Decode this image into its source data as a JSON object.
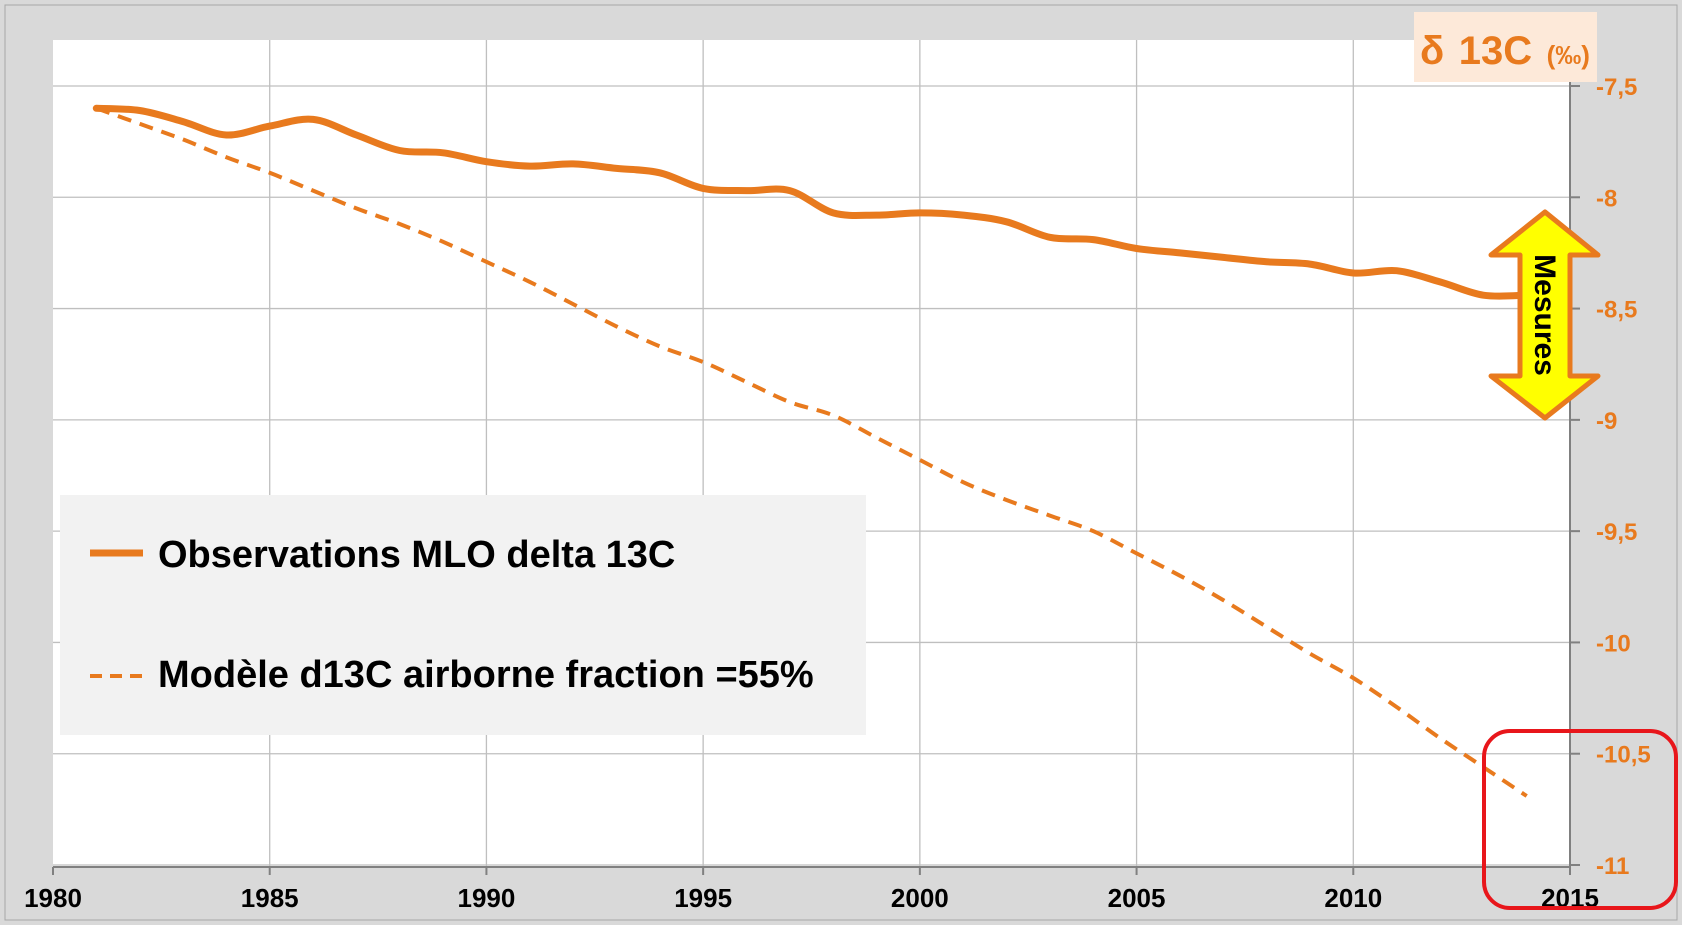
{
  "chart_data": {
    "type": "line",
    "title": "",
    "y_axis_title": "δ 13C (‰)",
    "y_axis_symbol": "δ",
    "y_axis_label_main": "13C",
    "y_axis_label_unit": "(‰)",
    "y_axis_position": "right",
    "xlim": [
      1980,
      2015
    ],
    "ylim": [
      -11,
      -7.5
    ],
    "x_ticks": [
      "1980",
      "1985",
      "1990",
      "1995",
      "2000",
      "2005",
      "2010",
      "2015"
    ],
    "x_tick_values": [
      1980,
      1985,
      1990,
      1995,
      2000,
      2005,
      2010,
      2015
    ],
    "y_ticks": [
      "-7,5",
      "-8",
      "-8,5",
      "-9",
      "-9,5",
      "-10",
      "-10,5",
      "-11"
    ],
    "y_tick_values": [
      -7.5,
      -8,
      -8.5,
      -9,
      -9.5,
      -10,
      -10.5,
      -11
    ],
    "grid": true,
    "legend_position": "left",
    "series": [
      {
        "name": "Observations MLO delta 13C",
        "style": "solid",
        "color": "#e87a1e",
        "x": [
          1981,
          1982,
          1983,
          1984,
          1985,
          1986,
          1987,
          1988,
          1989,
          1990,
          1991,
          1992,
          1993,
          1994,
          1995,
          1996,
          1997,
          1998,
          1999,
          2000,
          2001,
          2002,
          2003,
          2004,
          2005,
          2006,
          2007,
          2008,
          2009,
          2010,
          2011,
          2012,
          2013,
          2014
        ],
        "y": [
          -7.6,
          -7.61,
          -7.66,
          -7.72,
          -7.68,
          -7.65,
          -7.72,
          -7.79,
          -7.8,
          -7.84,
          -7.86,
          -7.85,
          -7.87,
          -7.89,
          -7.96,
          -7.97,
          -7.97,
          -8.07,
          -8.08,
          -8.07,
          -8.08,
          -8.11,
          -8.18,
          -8.19,
          -8.23,
          -8.25,
          -8.27,
          -8.29,
          -8.3,
          -8.34,
          -8.33,
          -8.38,
          -8.44,
          -8.44
        ]
      },
      {
        "name": "Modèle d13C airborne fraction =55%",
        "style": "dashed",
        "color": "#e87a1e",
        "x": [
          1981,
          1982,
          1983,
          1984,
          1985,
          1986,
          1987,
          1988,
          1989,
          1990,
          1991,
          1992,
          1993,
          1994,
          1995,
          1996,
          1997,
          1998,
          1999,
          2000,
          2001,
          2002,
          2003,
          2004,
          2005,
          2006,
          2007,
          2008,
          2009,
          2010,
          2011,
          2012,
          2013,
          2014
        ],
        "y": [
          -7.6,
          -7.67,
          -7.74,
          -7.82,
          -7.89,
          -7.97,
          -8.05,
          -8.12,
          -8.2,
          -8.29,
          -8.38,
          -8.48,
          -8.58,
          -8.67,
          -8.74,
          -8.83,
          -8.92,
          -8.98,
          -9.08,
          -9.18,
          -9.28,
          -9.36,
          -9.43,
          -9.5,
          -9.6,
          -9.7,
          -9.81,
          -9.93,
          -10.05,
          -10.16,
          -10.29,
          -10.43,
          -10.56,
          -10.69
        ]
      }
    ],
    "annotations": {
      "arrow_label": "Mesures",
      "arrow_fill": "#ffff00",
      "arrow_stroke": "#e87a1e",
      "highlight_box_color": "#e8161b"
    }
  },
  "colors": {
    "series": "#e87a1e",
    "frame_bg": "#d9d9d9",
    "plot_bg": "#ffffff",
    "grid": "#bfbfbf",
    "legend_bg": "#f2f2f2",
    "title_bg": "#fde9d9"
  }
}
